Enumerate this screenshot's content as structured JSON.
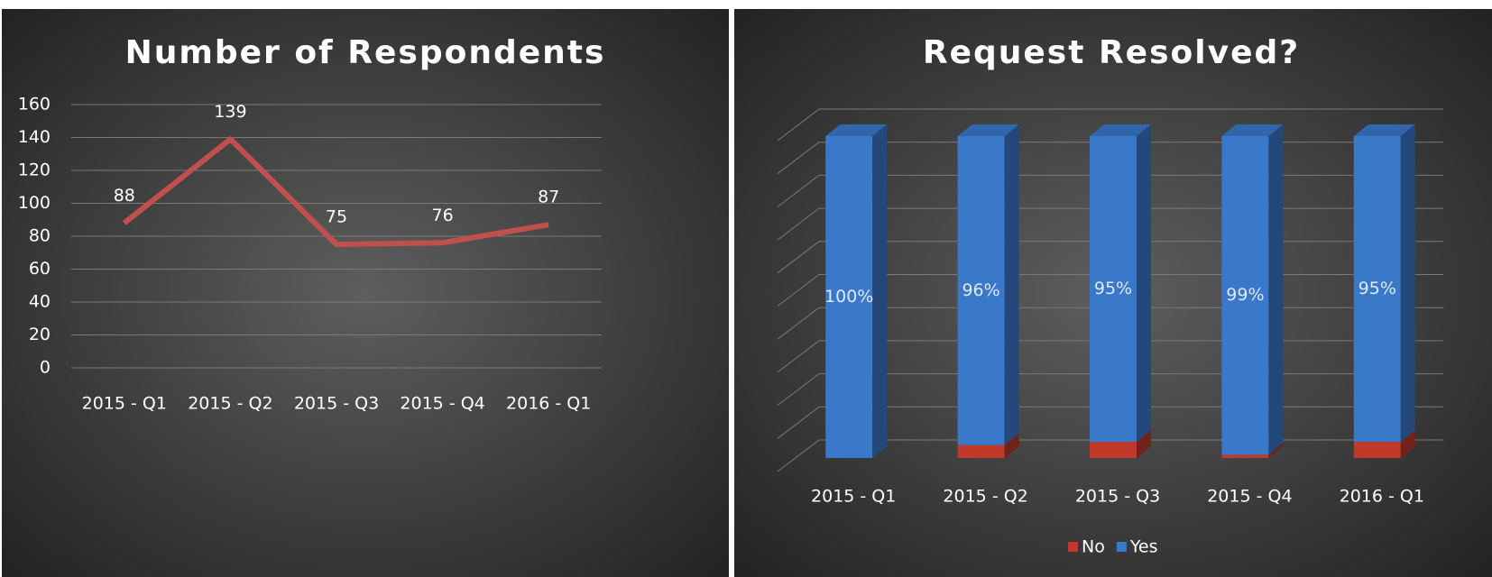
{
  "chart_data": [
    {
      "type": "line",
      "title": "Number of Respondents",
      "categories": [
        "2015 - Q1",
        "2015 - Q2",
        "2015 - Q3",
        "2015 - Q4",
        "2016 - Q1"
      ],
      "values": [
        88,
        139,
        75,
        76,
        87
      ],
      "color": "#c0504d",
      "ylim": [
        0,
        160
      ],
      "yticks": [
        0,
        20,
        40,
        60,
        80,
        100,
        120,
        140,
        160
      ],
      "grid": true
    },
    {
      "type": "bar3d",
      "title": "Request Resolved?",
      "categories": [
        "2015 - Q1",
        "2015 - Q2",
        "2015 - Q3",
        "2015 - Q4",
        "2016 - Q1"
      ],
      "ylim": [
        0,
        100
      ],
      "stacked": true,
      "legend": "bottom",
      "series": [
        {
          "name": "No",
          "color": "#c0392b",
          "values": [
            0,
            4,
            5,
            1,
            5
          ]
        },
        {
          "name": "Yes",
          "color": "#3a78c9",
          "values": [
            100,
            96,
            95,
            99,
            95
          ],
          "value_labels": [
            "100%",
            "96%",
            "95%",
            "99%",
            "95%"
          ]
        }
      ]
    }
  ]
}
